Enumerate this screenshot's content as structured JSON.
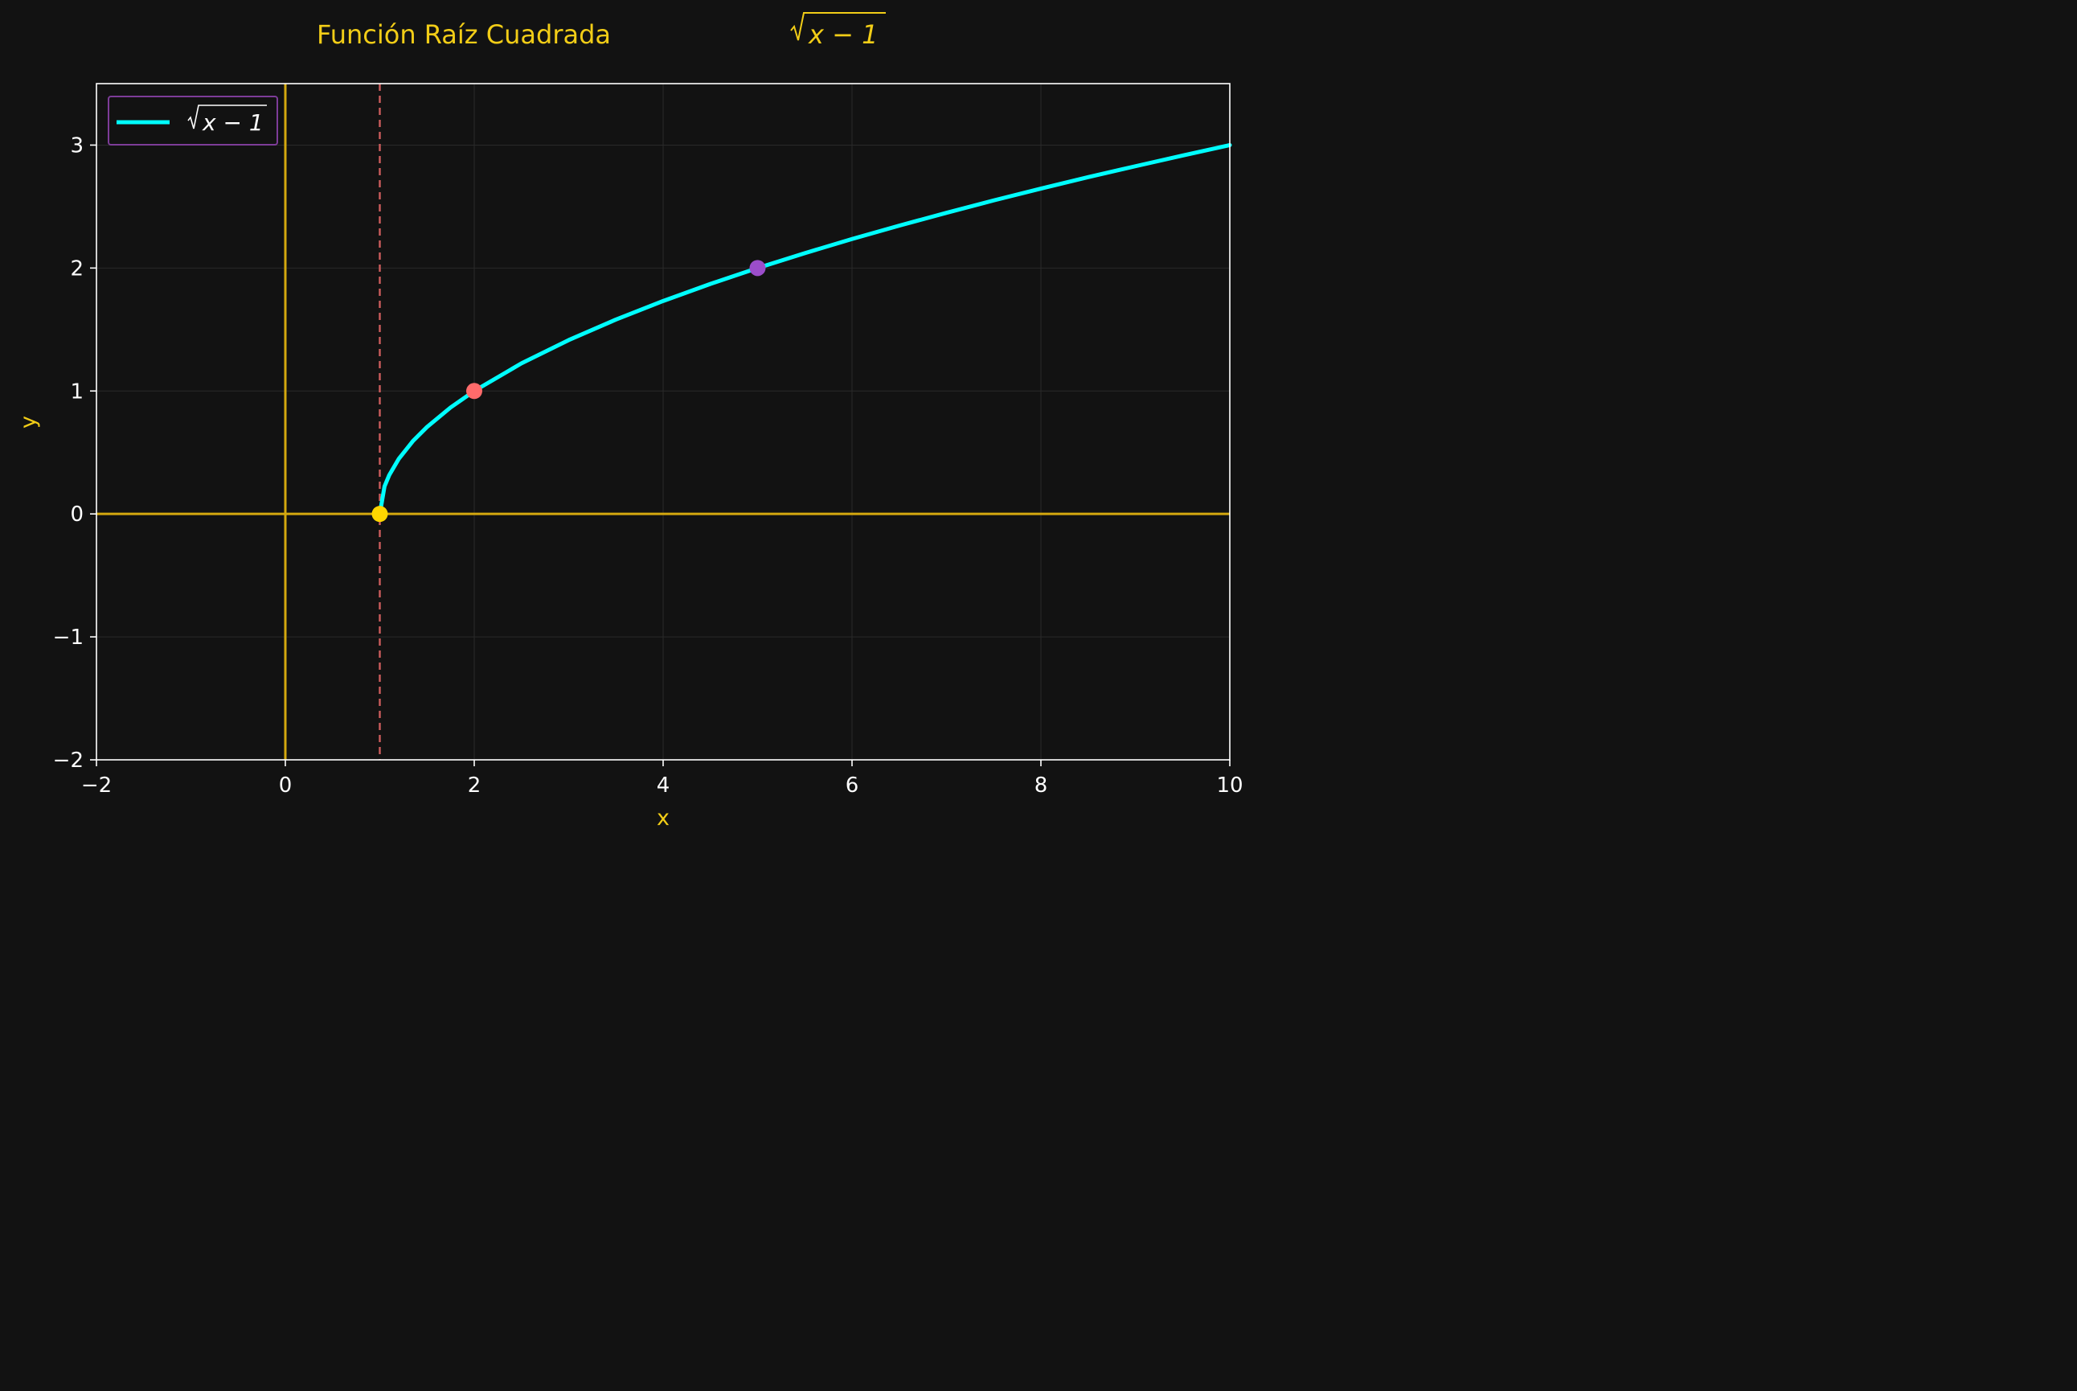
{
  "chart_data": {
    "type": "line",
    "title": "Función Raíz Cuadrada √x − 1",
    "title_text": "Función Raíz Cuadrada",
    "title_math": "x − 1",
    "xlabel": "x",
    "ylabel": "y",
    "xlim": [
      -2,
      10
    ],
    "ylim": [
      -2,
      3.5
    ],
    "xticks": [
      -2,
      0,
      2,
      4,
      6,
      8,
      10
    ],
    "yticks": [
      -2,
      -1,
      0,
      1,
      2,
      3
    ],
    "xtick_labels": [
      "−2",
      "0",
      "2",
      "4",
      "6",
      "8",
      "10"
    ],
    "ytick_labels": [
      "−2",
      "−1",
      "0",
      "1",
      "2",
      "3"
    ],
    "grid": true,
    "legend_position": "top-left",
    "series": [
      {
        "name": "√x − 1",
        "legend_math": "x − 1",
        "color": "#00ffff",
        "function": "sqrt(x-1)",
        "x": [
          1,
          1.05,
          1.1,
          1.2,
          1.35,
          1.5,
          1.75,
          2,
          2.5,
          3,
          3.5,
          4,
          4.5,
          5,
          5.5,
          6,
          6.5,
          7,
          7.5,
          8,
          8.5,
          9,
          9.5,
          10
        ],
        "y": [
          0,
          0.224,
          0.316,
          0.447,
          0.592,
          0.707,
          0.866,
          1,
          1.225,
          1.414,
          1.581,
          1.732,
          1.871,
          2,
          2.121,
          2.236,
          2.345,
          2.449,
          2.55,
          2.646,
          2.739,
          2.828,
          2.915,
          3
        ]
      }
    ],
    "points": [
      {
        "x": 1,
        "y": 0,
        "color": "#ffd700"
      },
      {
        "x": 2,
        "y": 1,
        "color": "#ff6b6b"
      },
      {
        "x": 5,
        "y": 2,
        "color": "#9b4dca"
      }
    ],
    "reference_lines": [
      {
        "orientation": "horizontal",
        "value": 0,
        "color": "#d4a80f",
        "style": "solid"
      },
      {
        "orientation": "vertical",
        "value": 0,
        "color": "#d4a80f",
        "style": "solid"
      },
      {
        "orientation": "vertical",
        "value": 1,
        "color": "#cd5c5c",
        "style": "dashed"
      }
    ]
  }
}
